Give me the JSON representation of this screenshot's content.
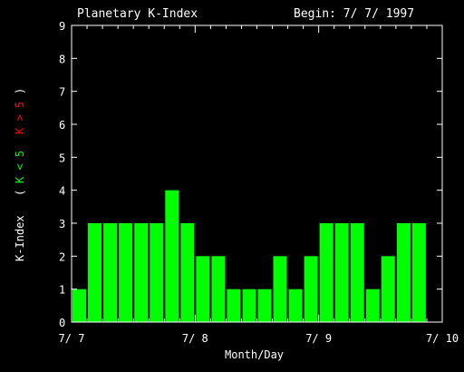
{
  "chart_data": {
    "type": "bar",
    "title": "Planetary K-Index",
    "begin_label": "Begin: 7/ 7/ 1997",
    "xlabel": "Month/Day",
    "ylabel": {
      "main": "K-Index",
      "open": "(",
      "green_part": "K < 5",
      "red_part": "K > 5",
      "close": ")"
    },
    "ylim": [
      0,
      9
    ],
    "yticks": [
      "0",
      "1",
      "2",
      "3",
      "4",
      "5",
      "6",
      "7",
      "8",
      "9"
    ],
    "xtick_labels": [
      "7/ 7",
      "7/ 8",
      "7/ 9",
      "7/ 10"
    ],
    "bar_interval_hours": 3,
    "values": [
      1,
      3,
      3,
      3,
      3,
      3,
      4,
      3,
      2,
      2,
      1,
      1,
      1,
      2,
      1,
      2,
      3,
      3,
      3,
      1,
      2,
      3,
      3
    ],
    "colors": {
      "low": "#00ff00",
      "high": "#ff0000",
      "axis": "#ffffff",
      "background": "#000000"
    },
    "grid": false
  }
}
